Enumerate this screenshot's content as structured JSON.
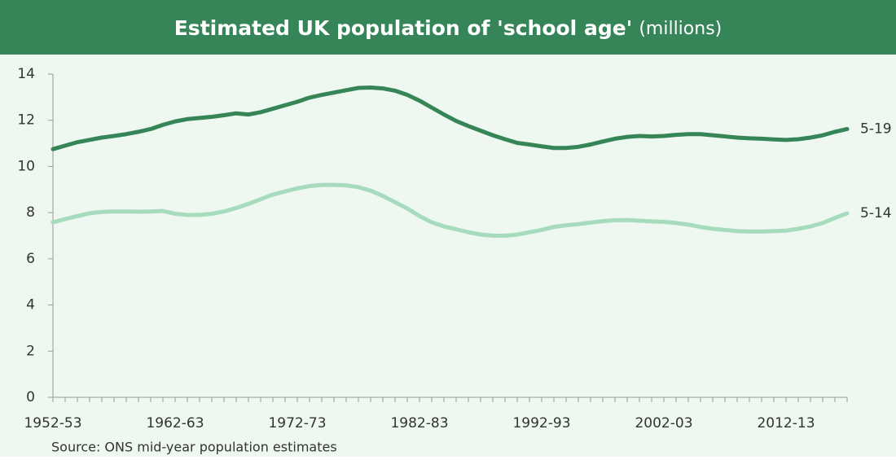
{
  "chart_data": {
    "type": "line",
    "title": "Estimated UK population of 'school age'",
    "subtitle": "(millions)",
    "source": "Source: ONS mid-year population estimates",
    "categories": [
      "1952-53",
      null,
      null,
      null,
      null,
      null,
      null,
      null,
      null,
      null,
      "1962-63",
      null,
      null,
      null,
      null,
      null,
      null,
      null,
      null,
      null,
      "1972-73",
      null,
      null,
      null,
      null,
      null,
      null,
      null,
      null,
      null,
      "1982-83",
      null,
      null,
      null,
      null,
      null,
      null,
      null,
      null,
      null,
      "1992-93",
      null,
      null,
      null,
      null,
      null,
      null,
      null,
      null,
      null,
      "2002-03",
      null,
      null,
      null,
      null,
      null,
      null,
      null,
      null,
      null,
      "2012-13",
      null,
      null,
      null,
      null,
      null
    ],
    "series": [
      {
        "name": "5-19",
        "color": "#358557",
        "values": [
          10.75,
          10.9,
          11.05,
          11.15,
          11.25,
          11.32,
          11.4,
          11.5,
          11.62,
          11.8,
          11.95,
          12.05,
          12.1,
          12.15,
          12.22,
          12.3,
          12.25,
          12.35,
          12.5,
          12.65,
          12.8,
          12.98,
          13.1,
          13.2,
          13.3,
          13.4,
          13.42,
          13.38,
          13.28,
          13.1,
          12.85,
          12.55,
          12.25,
          11.97,
          11.75,
          11.55,
          11.35,
          11.18,
          11.02,
          10.95,
          10.87,
          10.8,
          10.8,
          10.85,
          10.95,
          11.08,
          11.2,
          11.28,
          11.32,
          11.3,
          11.32,
          11.37,
          11.4,
          11.4,
          11.35,
          11.3,
          11.25,
          11.22,
          11.2,
          11.17,
          11.15,
          11.18,
          11.25,
          11.35,
          11.5,
          11.62
        ]
      },
      {
        "name": "5-14",
        "color": "#a6dbbe",
        "values": [
          7.58,
          7.72,
          7.85,
          7.97,
          8.03,
          8.05,
          8.05,
          8.04,
          8.05,
          8.07,
          7.95,
          7.9,
          7.9,
          7.95,
          8.05,
          8.2,
          8.38,
          8.58,
          8.78,
          8.92,
          9.05,
          9.15,
          9.2,
          9.2,
          9.18,
          9.1,
          8.95,
          8.72,
          8.45,
          8.18,
          7.85,
          7.58,
          7.4,
          7.28,
          7.15,
          7.05,
          7.0,
          7.0,
          7.05,
          7.15,
          7.25,
          7.38,
          7.45,
          7.5,
          7.57,
          7.63,
          7.67,
          7.68,
          7.65,
          7.62,
          7.6,
          7.55,
          7.48,
          7.38,
          7.3,
          7.25,
          7.2,
          7.18,
          7.18,
          7.2,
          7.22,
          7.3,
          7.4,
          7.55,
          7.77,
          7.97
        ]
      }
    ],
    "ylim": [
      0,
      14
    ],
    "yticks": [
      0,
      2,
      4,
      6,
      8,
      10,
      12,
      14
    ],
    "grid": false
  }
}
